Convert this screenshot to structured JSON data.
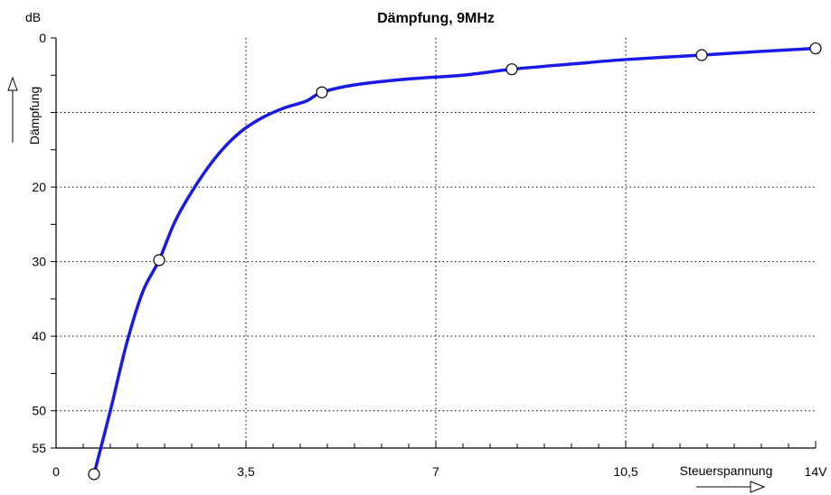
{
  "chart_data": {
    "type": "line",
    "title": "Dämpfung, 9MHz",
    "ylabel": "Dämpfung",
    "yunit": "dB",
    "xlabel": "Steuerspannung",
    "xlim": [
      0,
      14
    ],
    "ylim": [
      0,
      55
    ],
    "y_inverted": true,
    "x_ticks": [
      0,
      3.5,
      7,
      10.5,
      14
    ],
    "x_tick_labels": [
      "0",
      "3,5",
      "7",
      "10,5",
      "14V"
    ],
    "y_ticks": [
      0,
      20,
      30,
      40,
      50,
      55
    ],
    "y_tick_labels": [
      "0",
      "20",
      "30",
      "40",
      "50",
      "55"
    ],
    "x_gridlines": [
      3.5,
      7,
      10.5
    ],
    "y_gridlines": [
      10,
      20,
      30,
      40,
      50
    ],
    "grid": true,
    "series": [
      {
        "color": "#1a1ae6",
        "x": [
          0.7,
          1.0,
          1.3,
          1.6,
          1.9,
          2.2,
          2.6,
          3.0,
          3.4,
          3.8,
          4.2,
          4.6,
          4.9,
          5.5,
          6.5,
          7.5,
          8.4,
          9.5,
          10.5,
          11.9,
          13,
          14
        ],
        "y": [
          58.5,
          50.0,
          41.0,
          34.0,
          29.8,
          24.5,
          19.5,
          15.5,
          12.6,
          10.7,
          9.4,
          8.5,
          7.3,
          6.3,
          5.5,
          5.0,
          4.2,
          3.5,
          2.9,
          2.3,
          1.8,
          1.4
        ]
      }
    ],
    "markers": {
      "x": [
        0.7,
        1.9,
        4.9,
        8.4,
        11.9,
        14
      ],
      "y": [
        58.5,
        29.8,
        7.3,
        4.2,
        2.3,
        1.4
      ]
    }
  }
}
